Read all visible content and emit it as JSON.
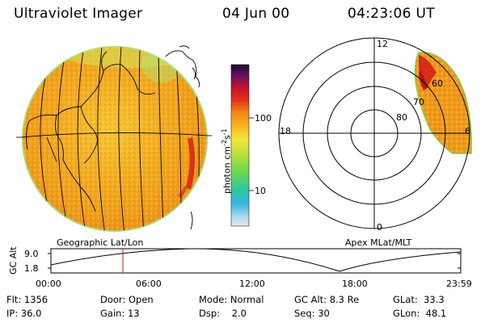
{
  "header": {
    "title": "Ultraviolet Imager",
    "date": "04 Jun 00",
    "time": "04:23:06 UT"
  },
  "colorbar": {
    "label": "photon cm^-2 s^-1",
    "label_text": "photon cm",
    "label_sup1": "-2",
    "label_s": "s",
    "label_sup2": "-1",
    "ticks": [
      "100",
      "10"
    ]
  },
  "polar": {
    "mlt_labels": [
      "12",
      "18",
      "6",
      "0"
    ],
    "lat_labels": [
      "60",
      "70",
      "80"
    ]
  },
  "map_captions": {
    "left": "Geographic Lat/Lon",
    "right": "Apex MLat/MLT"
  },
  "orbit_plot": {
    "ylabel": "GC Alt",
    "yticks": [
      "9.0",
      "1.8"
    ],
    "xticks": [
      "00:00",
      "06:00",
      "12:00",
      "18:00",
      "23:59"
    ],
    "current_time_marker": "04:23"
  },
  "info": {
    "flt_label": "Flt:",
    "flt_value": "1356",
    "ip_label": "IP:",
    "ip_value": "36.0",
    "door_label": "Door:",
    "door_value": "Open",
    "gain_label": "Gain:",
    "gain_value": "13",
    "mode_label": "Mode:",
    "mode_value": "Normal",
    "dsp_label": "Dsp:",
    "dsp_value": "2.0",
    "gcalt_label": "GC Alt:",
    "gcalt_value": "8.3 Re",
    "seq_label": "Seq:",
    "seq_value": "30",
    "glat_label": "GLat:",
    "glat_value": "33.3",
    "glon_label": "GLon:",
    "glon_value": "48.1"
  },
  "colors": {
    "disk_fill": "#f2a81e",
    "disk_edge": "#7ad04a",
    "auroral_red": "#d9201a",
    "marker": "#d01010"
  }
}
